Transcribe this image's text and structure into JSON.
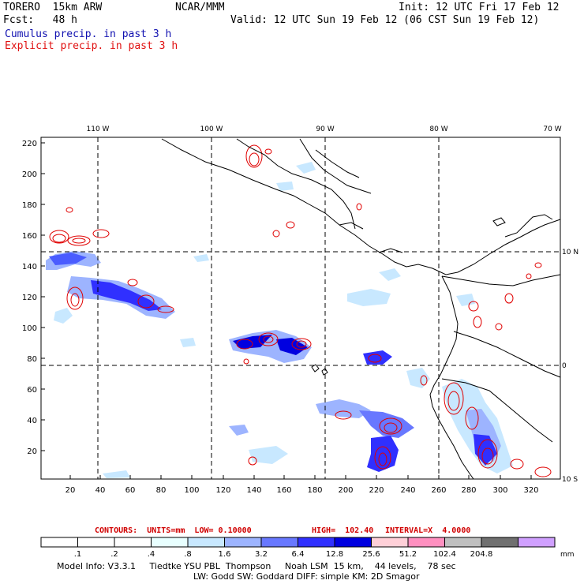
{
  "header": {
    "model": "TORERO  15km ARW",
    "center": "NCAR/MMM",
    "init": "Init: 12 UTC Fri 17 Feb 12",
    "fcst": "Fcst:   48 h",
    "valid": "Valid: 12 UTC Sun 19 Feb 12 (06 CST Sun 19 Feb 12)",
    "legend_cumulus": "Cumulus precip. in past 3 h",
    "legend_explicit": "Explicit precip. in past 3 h"
  },
  "map": {
    "top_lon_labels": [
      "110 W",
      "100 W",
      "90 W",
      "80 W",
      "70 W"
    ],
    "right_lat_labels": [
      "10 N",
      "0",
      "10 S"
    ],
    "y_ticks": [
      "220",
      "200",
      "180",
      "160",
      "140",
      "120",
      "100",
      "80",
      "60",
      "40",
      "20"
    ],
    "x_ticks": [
      "20",
      "40",
      "60",
      "80",
      "100",
      "120",
      "140",
      "160",
      "180",
      "200",
      "220",
      "240",
      "260",
      "280",
      "300",
      "320"
    ]
  },
  "contours": {
    "units_label": "CONTOURS:  UNITS=mm  LOW= 0.10000",
    "high_label": "HIGH=  102.40",
    "interval_label": "INTERVAL=X  4.0000"
  },
  "colorbar": {
    "labels": [
      ".1",
      ".2",
      ".4",
      ".8",
      "1.6",
      "3.2",
      "6.4",
      "12.8",
      "25.6",
      "51.2",
      "102.4",
      "204.8"
    ],
    "unit": "mm",
    "colors": [
      "#ffffff",
      "#ffffff",
      "#ffffff",
      "#e8ffff",
      "#c8e8ff",
      "#9db4ff",
      "#6878ff",
      "#3030ff",
      "#0000e0",
      "#ffd0d8",
      "#ff90c0",
      "#c0c0c0",
      "#707070",
      "#d0a0ff"
    ]
  },
  "model_info": {
    "line1": "Model Info: V3.3.1     Tiedtke YSU PBL  Thompson     Noah LSM  15 km,    44 levels,    78 sec",
    "line2": "LW: Godd SW: Goddard DIFF: simple KM: 2D Smagor"
  }
}
